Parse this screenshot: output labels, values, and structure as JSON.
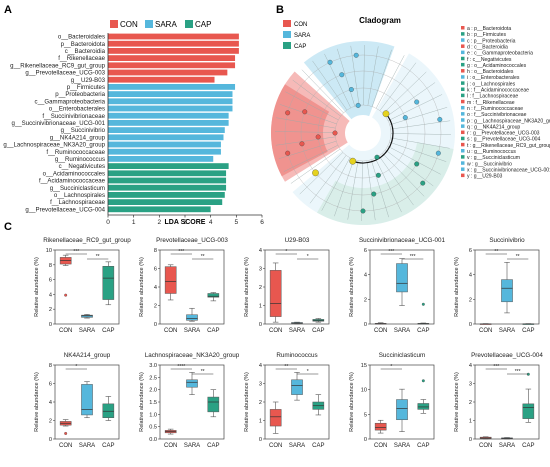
{
  "panel_labels": {
    "a": "A",
    "b": "B",
    "c": "C"
  },
  "colors": {
    "CON": "#e8574f",
    "SARA": "#55b7dc",
    "CAP": "#2aa184"
  },
  "chart_data": [
    {
      "type": "bar",
      "orientation": "horizontal",
      "panel": "A",
      "xlabel": "LDA SCORE",
      "xlim": [
        0,
        6
      ],
      "xticks": [
        "0",
        "1",
        "2",
        "3",
        "4",
        "5",
        "6"
      ],
      "legend": [
        "CON",
        "SARA",
        "CAP"
      ],
      "legend_position": "top",
      "categories": [
        "o__Bacteroidales",
        "p__Bacteroidota",
        "c__Bacteroidia",
        "f__Rikenellaceae",
        "g__Rikenellaceae_RC9_gut_group",
        "g__Prevotellaceae_UCG-003",
        "g__U29-B03",
        "p__Firmicutes",
        "p__Proteobacteria",
        "c__Gammaproteobacteria",
        "o__Enterobacterales",
        "f__Succinivibrionaceae",
        "g__Succinivibrionaceae_UCG-001",
        "g__Succinivibrio",
        "g__NK4A214_group",
        "g__Lachnospiraceae_NK3A20_group",
        "f__Ruminococcaceae",
        "g__Ruminococcus",
        "c__Negativicutes",
        "o__Acidaminococcales",
        "f__Acidaminococcaceae",
        "g__Succiniclasticum",
        "o__Lachnospirales",
        "f__Lachnospiraceae",
        "g__Prevotellaceae_UCG-004"
      ],
      "values": [
        5.1,
        5.1,
        5.1,
        4.95,
        4.95,
        4.65,
        4.15,
        4.95,
        4.85,
        4.85,
        4.85,
        4.7,
        4.7,
        4.55,
        4.5,
        4.4,
        4.4,
        4.1,
        4.7,
        4.6,
        4.6,
        4.6,
        4.55,
        4.45,
        4.0
      ],
      "groups": [
        "CON",
        "CON",
        "CON",
        "CON",
        "CON",
        "CON",
        "CON",
        "SARA",
        "SARA",
        "SARA",
        "SARA",
        "SARA",
        "SARA",
        "SARA",
        "SARA",
        "SARA",
        "SARA",
        "SARA",
        "CAP",
        "CAP",
        "CAP",
        "CAP",
        "CAP",
        "CAP",
        "CAP"
      ]
    },
    {
      "type": "cladogram",
      "panel": "B",
      "title": "Cladogram",
      "legend": [
        "CON",
        "SARA",
        "CAP"
      ],
      "node_labels": [
        "a : p__Bacteroidota",
        "b : p__Firmicutes",
        "c : p__Proteobacteria",
        "d : c__Bacteroidia",
        "e : c__Gammaproteobacteria",
        "f : c__Negativicutes",
        "g : o__Acidaminococcales",
        "h : o__Bacteroidales",
        "i : o__Enterobacterales",
        "j : o__Lachnospirales",
        "k : f__Acidaminococcaceae",
        "l : f__Lachnospiraceae",
        "m : f__Rikenellaceae",
        "n : f__Ruminococcaceae",
        "o : f__Succinivibrionaceae",
        "p : g__Lachnospiraceae_NK3A20_group",
        "q : g__NK4A214_group",
        "r : g__Prevotellaceae_UCG-003",
        "s : g__Prevotellaceae_UCG-004",
        "t : g__Rikenellaceae_RC9_gut_group",
        "u : g__Ruminococcus",
        "v : g__Succiniclasticum",
        "w : g__Succinivibrio",
        "x : g__Succinivibrionaceae_UCG-001",
        "y : g__U29-B03"
      ],
      "node_groups": [
        "CON",
        "CAP",
        "SARA",
        "CON",
        "SARA",
        "CAP",
        "CAP",
        "CON",
        "SARA",
        "CAP",
        "CAP",
        "CAP",
        "CON",
        "SARA",
        "SARA",
        "SARA",
        "SARA",
        "CON",
        "CAP",
        "CON",
        "SARA",
        "CAP",
        "SARA",
        "SARA",
        "CON"
      ]
    },
    {
      "type": "box",
      "panel": "C",
      "ylabel": "Relative abundance (%)",
      "categories": [
        "CON",
        "SARA",
        "CAP"
      ],
      "plots": [
        {
          "title": "Rikenellaceae_RC9_gut_group",
          "ylim": [
            0,
            10
          ],
          "yticks": [
            "0",
            "2",
            "4",
            "6",
            "8",
            "10"
          ],
          "boxes": [
            [
              7.9,
              8.1,
              8.6,
              9.0,
              9.3
            ],
            [
              0.8,
              0.9,
              1.1,
              1.2,
              1.3
            ],
            [
              2.6,
              3.3,
              6.2,
              7.8,
              8.4
            ]
          ],
          "outliers": [
            [
              3.9
            ],
            [],
            []
          ],
          "signif": [
            "***",
            "**"
          ]
        },
        {
          "title": "Prevotellaceae_UCG-003",
          "ylim": [
            0,
            8
          ],
          "yticks": [
            "0",
            "2",
            "4",
            "6",
            "8"
          ],
          "boxes": [
            [
              2.6,
              3.3,
              4.6,
              6.2,
              6.4
            ],
            [
              0.3,
              0.4,
              0.6,
              1.0,
              1.7
            ],
            [
              2.5,
              2.9,
              3.0,
              3.3,
              3.4
            ]
          ],
          "outliers": [
            [],
            [],
            []
          ],
          "signif": [
            "***",
            "**"
          ]
        },
        {
          "title": "U29-B03",
          "ylim": [
            0,
            4
          ],
          "yticks": [
            "0",
            "1",
            "2",
            "3",
            "4"
          ],
          "boxes": [
            [
              0.1,
              0.4,
              1.1,
              2.9,
              3.3
            ],
            [
              0.0,
              0.03,
              0.05,
              0.08,
              0.1
            ],
            [
              0.1,
              0.15,
              0.2,
              0.25,
              0.3
            ]
          ],
          "outliers": [
            [],
            [],
            []
          ],
          "signif": [
            "*",
            "*"
          ]
        },
        {
          "title": "Succinivibrionaceae_UCG-001",
          "ylim": [
            0,
            6
          ],
          "yticks": [
            "0",
            "2",
            "4",
            "6"
          ],
          "boxes": [
            [
              0.0,
              0.0,
              0.02,
              0.05,
              0.1
            ],
            [
              1.5,
              2.6,
              3.3,
              4.9,
              5.3
            ],
            [
              0.0,
              0.0,
              0.02,
              0.05,
              0.08
            ]
          ],
          "outliers": [
            [],
            [],
            [
              1.6
            ]
          ],
          "signif": [
            "***",
            "***"
          ]
        },
        {
          "title": "Succinivibrio",
          "ylim": [
            0,
            6
          ],
          "yticks": [
            "0",
            "2",
            "4",
            "6"
          ],
          "boxes": [
            [
              0.0,
              0.0,
              0.01,
              0.02,
              0.03
            ],
            [
              0.9,
              1.8,
              2.9,
              3.6,
              5.0
            ],
            [
              0.0,
              0.0,
              0.01,
              0.02,
              0.03
            ]
          ],
          "outliers": [
            [],
            [],
            []
          ],
          "signif": [
            "**",
            "**"
          ]
        },
        {
          "title": "NK4A214_group",
          "ylim": [
            0,
            8
          ],
          "yticks": [
            "0",
            "2",
            "4",
            "6",
            "8"
          ],
          "boxes": [
            [
              1.4,
              1.5,
              1.7,
              1.9,
              2.1
            ],
            [
              2.3,
              2.6,
              3.2,
              5.9,
              6.2
            ],
            [
              2.0,
              2.3,
              3.0,
              3.8,
              4.6
            ]
          ],
          "outliers": [
            [
              0.6
            ],
            [],
            []
          ],
          "signif": [
            "*",
            ""
          ]
        },
        {
          "title": "Lachnospiraceae_NK3A20_group",
          "ylim": [
            0,
            3
          ],
          "yticks": [
            "0.0",
            "0.5",
            "1.0",
            "1.5",
            "2.0",
            "2.5",
            "3.0"
          ],
          "boxes": [
            [
              0.2,
              0.25,
              0.3,
              0.35,
              0.4
            ],
            [
              1.8,
              2.1,
              2.3,
              2.4,
              2.7
            ],
            [
              0.9,
              1.1,
              1.5,
              1.7,
              2.0
            ]
          ],
          "outliers": [
            [],
            [],
            []
          ],
          "signif": [
            "****",
            "**"
          ]
        },
        {
          "title": "Ruminococcus",
          "ylim": [
            0,
            4
          ],
          "yticks": [
            "0",
            "1",
            "2",
            "3",
            "4"
          ],
          "boxes": [
            [
              0.3,
              0.7,
              1.2,
              1.6,
              2.0
            ],
            [
              2.1,
              2.4,
              2.9,
              3.2,
              3.6
            ],
            [
              1.3,
              1.6,
              1.8,
              2.0,
              2.4
            ]
          ],
          "outliers": [
            [],
            [],
            []
          ],
          "signif": [
            "**",
            "*"
          ]
        },
        {
          "title": "Succiniclasticum",
          "ylim": [
            0,
            15
          ],
          "yticks": [
            "0",
            "5",
            "10",
            "15"
          ],
          "boxes": [
            [
              1.2,
              1.8,
              2.3,
              3.2,
              3.8
            ],
            [
              1.5,
              3.9,
              6.2,
              8.0,
              10.1
            ],
            [
              5.2,
              6.0,
              6.5,
              7.2,
              8.0
            ]
          ],
          "outliers": [
            [],
            [],
            [
              11.8
            ]
          ],
          "signif": [
            "*",
            ""
          ]
        },
        {
          "title": "Prevotellaceae_UCG-004",
          "ylim": [
            0,
            4
          ],
          "yticks": [
            "0",
            "1",
            "2",
            "3",
            "4"
          ],
          "boxes": [
            [
              0.0,
              0.02,
              0.05,
              0.1,
              0.12
            ],
            [
              0.0,
              0.02,
              0.04,
              0.06,
              0.08
            ],
            [
              0.9,
              1.1,
              1.7,
              1.9,
              2.7
            ]
          ],
          "outliers": [
            [],
            [],
            [
              3.5
            ]
          ],
          "signif": [
            "***",
            "***"
          ]
        }
      ]
    }
  ]
}
